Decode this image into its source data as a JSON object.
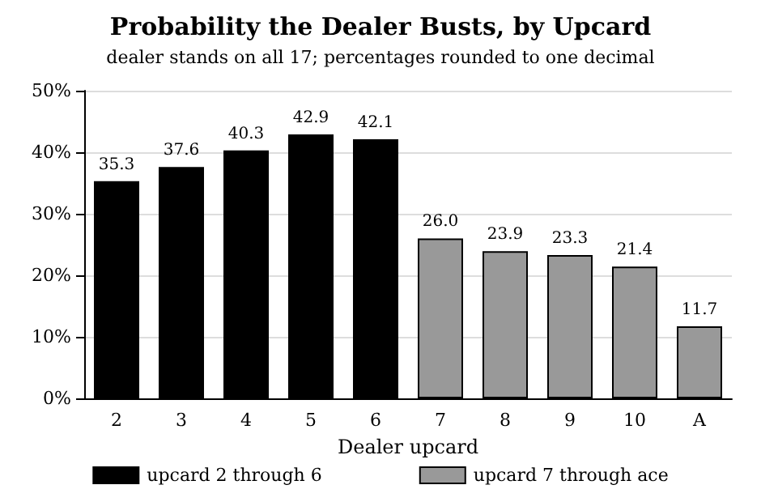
{
  "chart_data": {
    "type": "bar",
    "title": "Probability the Dealer Busts, by Upcard",
    "subtitle": "dealer stands on all 17; percentages rounded to one decimal",
    "xlabel": "Dealer upcard",
    "categories": [
      "2",
      "3",
      "4",
      "5",
      "6",
      "7",
      "8",
      "9",
      "10",
      "A"
    ],
    "series": [
      {
        "name": "upcard 2 through 6",
        "color": "#000000",
        "values": [
          35.3,
          37.6,
          40.3,
          42.9,
          42.1,
          null,
          null,
          null,
          null,
          null
        ],
        "value_labels": [
          "35.3",
          "37.6",
          "40.3",
          "42.9",
          "42.1",
          null,
          null,
          null,
          null,
          null
        ]
      },
      {
        "name": "upcard 7 through ace",
        "color": "#999999",
        "values": [
          null,
          null,
          null,
          null,
          null,
          26.0,
          23.9,
          23.3,
          21.4,
          11.7
        ],
        "value_labels": [
          null,
          null,
          null,
          null,
          null,
          "26.0",
          "23.9",
          "23.3",
          "21.4",
          "11.7"
        ]
      }
    ],
    "stacked": true,
    "ylim": [
      0,
      50
    ],
    "yticks": [
      {
        "value": 0,
        "label": "0%"
      },
      {
        "value": 10,
        "label": "10%"
      },
      {
        "value": 20,
        "label": "20%"
      },
      {
        "value": 30,
        "label": "30%"
      },
      {
        "value": 40,
        "label": "40%"
      },
      {
        "value": 50,
        "label": "50%"
      }
    ],
    "grid": "y",
    "legend": "bottom"
  }
}
